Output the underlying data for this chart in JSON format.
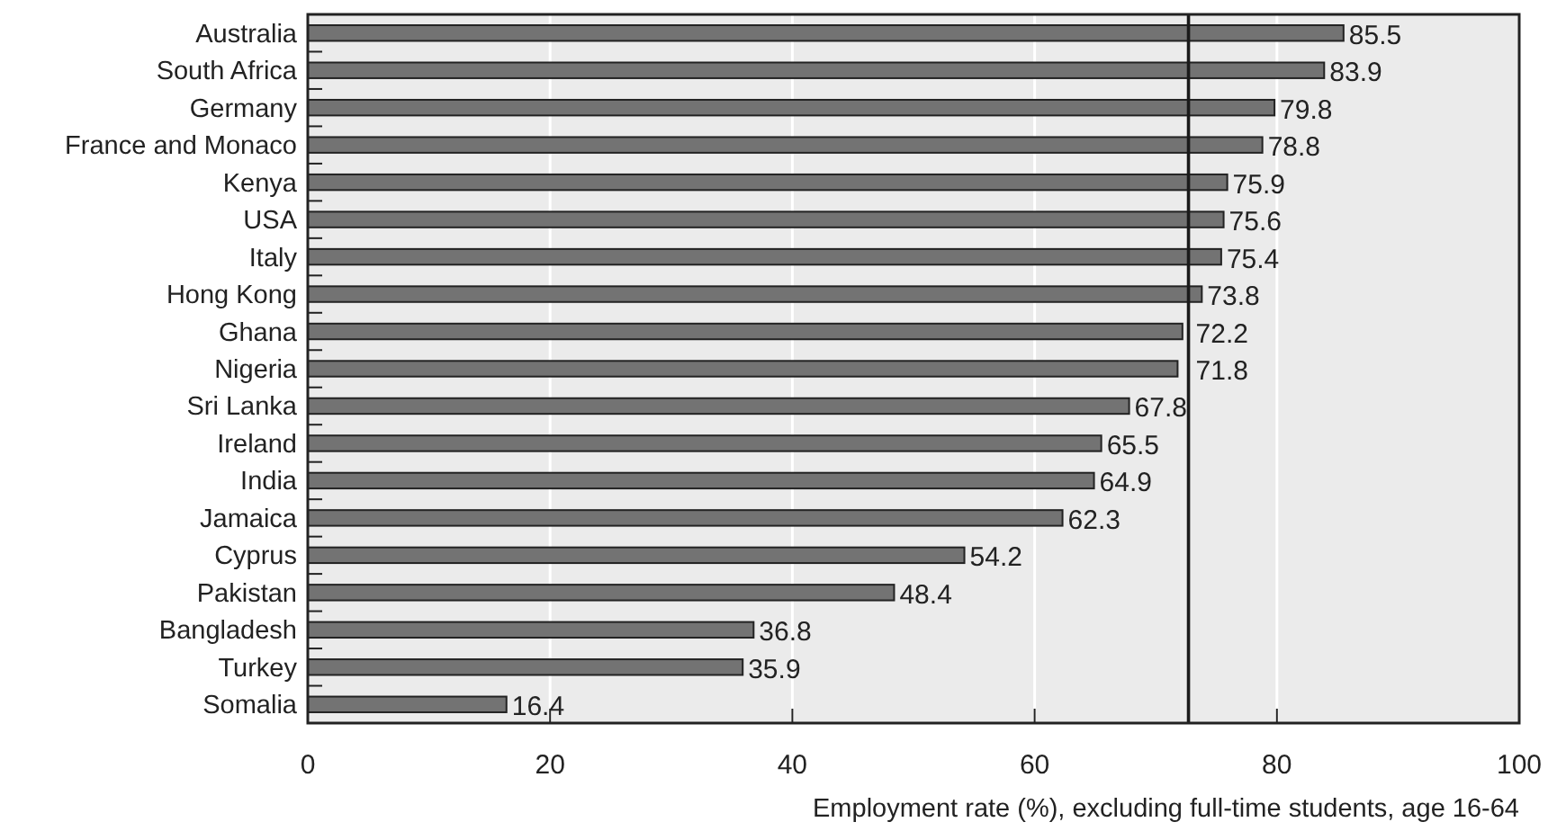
{
  "chart_data": {
    "type": "bar",
    "orientation": "horizontal",
    "xlabel": "Employment rate (%), excluding full-time students, age 16-64",
    "categories": [
      "Australia",
      "South Africa",
      "Germany",
      "France and Monaco",
      "Kenya",
      "USA",
      "Italy",
      "Hong Kong",
      "Ghana",
      "Nigeria",
      "Sri Lanka",
      "Ireland",
      "India",
      "Jamaica",
      "Cyprus",
      "Pakistan",
      "Bangladesh",
      "Turkey",
      "Somalia"
    ],
    "values": [
      85.5,
      83.9,
      79.8,
      78.8,
      75.9,
      75.6,
      75.4,
      73.8,
      72.2,
      71.8,
      67.8,
      65.5,
      64.9,
      62.3,
      54.2,
      48.4,
      36.8,
      35.9,
      16.4
    ],
    "color": "#737373",
    "xlim": [
      0,
      100
    ],
    "xticks": [
      0,
      20,
      40,
      60,
      80,
      100
    ],
    "grid": "x",
    "data_labels": true,
    "ref_lines": [
      {
        "axis": "x",
        "value": 72.7,
        "color": "#1a1a1a"
      }
    ]
  }
}
